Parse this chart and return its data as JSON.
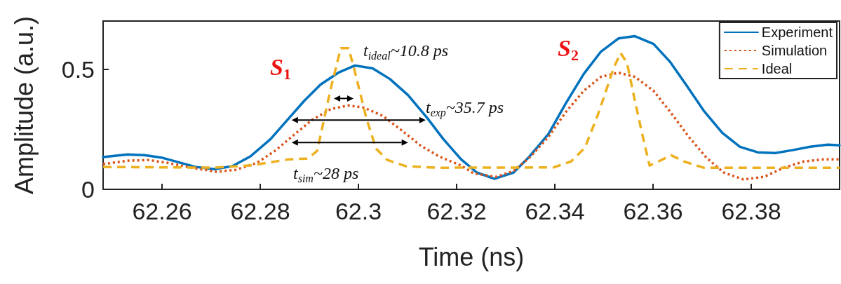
{
  "chart_data": {
    "type": "line",
    "xlabel": "Time (ns)",
    "ylabel": "Amplitude (a.u.)",
    "xlim": [
      62.248,
      62.398
    ],
    "xticks": [
      62.26,
      62.28,
      62.3,
      62.32,
      62.34,
      62.36,
      62.38
    ],
    "ylim": [
      0,
      0.7
    ],
    "yticks": [
      0,
      0.5
    ],
    "grid": false,
    "legend": "top right",
    "series": [
      {
        "name": "Experiment",
        "color": "#0072bd",
        "line_style": "solid",
        "x": [
          62.248,
          62.253,
          62.2564,
          62.2601,
          62.2669,
          62.2707,
          62.2743,
          62.278,
          62.2821,
          62.2859,
          62.289,
          62.2923,
          62.2959,
          62.2993,
          62.3029,
          62.3064,
          62.3101,
          62.314,
          62.3173,
          62.3209,
          62.3241,
          62.3277,
          62.3316,
          62.3346,
          62.3387,
          62.3423,
          62.3459,
          62.3494,
          62.353,
          62.3563,
          62.3601,
          62.3634,
          62.3667,
          62.3703,
          62.3741,
          62.3777,
          62.3813,
          62.3849,
          62.3884,
          62.392,
          62.3956,
          62.398
        ],
        "values": [
          0.134,
          0.145,
          0.142,
          0.131,
          0.093,
          0.084,
          0.096,
          0.137,
          0.209,
          0.297,
          0.369,
          0.436,
          0.485,
          0.515,
          0.503,
          0.459,
          0.392,
          0.297,
          0.209,
          0.125,
          0.07,
          0.044,
          0.07,
          0.131,
          0.23,
          0.36,
          0.48,
          0.573,
          0.628,
          0.637,
          0.605,
          0.532,
          0.436,
          0.328,
          0.235,
          0.177,
          0.154,
          0.151,
          0.163,
          0.177,
          0.186,
          0.183
        ]
      },
      {
        "name": "Simulation",
        "color": "#d95319",
        "line_style": "dotted",
        "x": [
          62.248,
          62.253,
          62.2573,
          62.2611,
          62.2669,
          62.2711,
          62.275,
          62.2793,
          62.283,
          62.2869,
          62.2907,
          62.2944,
          62.2979,
          62.3011,
          62.305,
          62.3087,
          62.3126,
          62.3164,
          62.3209,
          62.3234,
          62.328,
          62.3316,
          62.3351,
          62.3387,
          62.3423,
          62.3459,
          62.3494,
          62.353,
          62.3563,
          62.3601,
          62.3637,
          62.3673,
          62.3709,
          62.3744,
          62.3784,
          62.3826,
          62.3867,
          62.3907,
          62.3949,
          62.398
        ],
        "values": [
          0.105,
          0.119,
          0.122,
          0.11,
          0.087,
          0.073,
          0.081,
          0.11,
          0.16,
          0.227,
          0.291,
          0.334,
          0.349,
          0.34,
          0.305,
          0.247,
          0.183,
          0.137,
          0.099,
          0.067,
          0.052,
          0.076,
          0.137,
          0.218,
          0.323,
          0.41,
          0.468,
          0.485,
          0.468,
          0.41,
          0.317,
          0.218,
          0.131,
          0.07,
          0.041,
          0.052,
          0.09,
          0.116,
          0.125,
          0.125
        ]
      },
      {
        "name": "Ideal",
        "color": "#edb120",
        "line_style": "dashed",
        "x": [
          62.248,
          62.2707,
          62.2783,
          62.2859,
          62.2897,
          62.2916,
          62.2944,
          62.2964,
          62.298,
          62.2993,
          62.3016,
          62.3036,
          62.3059,
          62.3097,
          62.3159,
          62.3183,
          62.3397,
          62.3433,
          62.3461,
          62.3489,
          62.352,
          62.3534,
          62.3547,
          62.3563,
          62.3581,
          62.3593,
          62.3611,
          62.3637,
          62.3663,
          62.3703,
          62.398
        ],
        "values": [
          0.093,
          0.09,
          0.1,
          0.125,
          0.128,
          0.16,
          0.422,
          0.587,
          0.587,
          0.488,
          0.297,
          0.169,
          0.122,
          0.096,
          0.09,
          0.09,
          0.091,
          0.116,
          0.172,
          0.317,
          0.506,
          0.567,
          0.526,
          0.369,
          0.203,
          0.099,
          0.116,
          0.142,
          0.116,
          0.09,
          0.09
        ]
      }
    ],
    "annotations": [
      "S$_{1}$",
      "S$_{2}$",
      "t$_{ideal}$~10.8 ps",
      "t$_{exp}$~35.7 ps",
      "t$_{sim}$~28 ps"
    ]
  }
}
